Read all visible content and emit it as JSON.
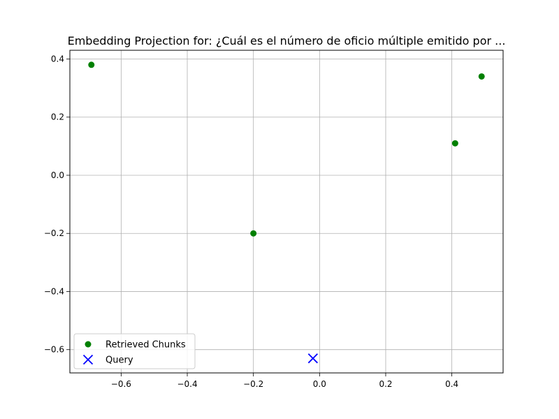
{
  "chart_data": {
    "type": "scatter",
    "title": "Embedding Projection for: ¿Cuál es el número de oficio múltiple emitido por ...",
    "xlabel": "",
    "ylabel": "",
    "xlim": [
      -0.755,
      0.555
    ],
    "ylim": [
      -0.68,
      0.43
    ],
    "xticks": [
      -0.6,
      -0.4,
      -0.2,
      0.0,
      0.2,
      0.4
    ],
    "xtick_labels": [
      "−0.6",
      "−0.4",
      "−0.2",
      "0.0",
      "0.2",
      "0.4"
    ],
    "yticks": [
      -0.6,
      -0.4,
      -0.2,
      0.0,
      0.2,
      0.4
    ],
    "ytick_labels": [
      "−0.6",
      "−0.4",
      "−0.2",
      "0.0",
      "0.2",
      "0.4"
    ],
    "grid": true,
    "legend_position": "lower-left",
    "series": [
      {
        "name": "Retrieved Chunks",
        "marker": "circle",
        "color": "#008000",
        "points": [
          {
            "x": -0.69,
            "y": 0.38
          },
          {
            "x": -0.2,
            "y": -0.2
          },
          {
            "x": 0.41,
            "y": 0.11
          },
          {
            "x": 0.49,
            "y": 0.34
          }
        ]
      },
      {
        "name": "Query",
        "marker": "x",
        "color": "#0000ff",
        "points": [
          {
            "x": -0.02,
            "y": -0.63
          }
        ]
      }
    ]
  }
}
